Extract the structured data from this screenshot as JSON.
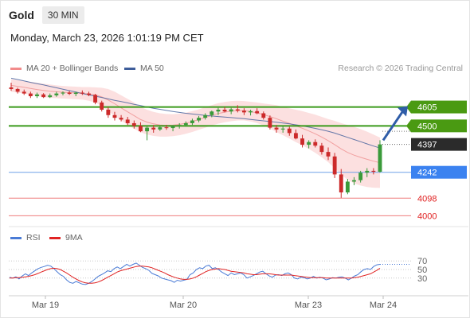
{
  "header": {
    "symbol": "Gold",
    "timeframe": "30 MIN",
    "datetime": "Monday, March 23, 2026 1:01:19 PM CET"
  },
  "legend": {
    "bollinger": "MA 20 + Bollinger Bands",
    "ma50": "MA 50",
    "rsi": "RSI",
    "rsi_ma": "9MA"
  },
  "credit": "Research © 2026 Trading Central",
  "colors": {
    "up_candle": "#3a9a3a",
    "down_candle": "#cc2a2a",
    "support": "#6fa0e8",
    "resistance": "#3a9a1a",
    "low_level": "#ef7d7d",
    "ma50": "#3e5d9a",
    "band_fill": "#fbdada",
    "rsi_line": "#4a7bd6",
    "rsi_ma_line": "#e02424",
    "arrow": "#2f5da8"
  },
  "chart_data": [
    {
      "type": "candlestick",
      "x_labels": [
        "Mar 19",
        "Mar 20",
        "Mar 23",
        "Mar 24"
      ],
      "ylim": [
        3940,
        4780
      ],
      "last_price": 4397,
      "levels": [
        {
          "value": 4605,
          "label": "4605",
          "kind": "resistance"
        },
        {
          "value": 4500,
          "label": "4500",
          "kind": "resistance"
        },
        {
          "value": 4397,
          "label": "4397",
          "kind": "last"
        },
        {
          "value": 4242,
          "label": "4242",
          "kind": "support"
        },
        {
          "value": 4098,
          "label": "4098",
          "kind": "low"
        },
        {
          "value": 4000,
          "label": "4000",
          "kind": "low"
        }
      ],
      "ohlc": [
        [
          4714,
          4740,
          4695,
          4705
        ],
        [
          4705,
          4712,
          4680,
          4690
        ],
        [
          4690,
          4702,
          4672,
          4680
        ],
        [
          4680,
          4690,
          4655,
          4665
        ],
        [
          4665,
          4685,
          4655,
          4675
        ],
        [
          4675,
          4682,
          4655,
          4660
        ],
        [
          4660,
          4680,
          4655,
          4670
        ],
        [
          4670,
          4690,
          4662,
          4680
        ],
        [
          4680,
          4692,
          4670,
          4685
        ],
        [
          4685,
          4695,
          4672,
          4678
        ],
        [
          4678,
          4690,
          4665,
          4685
        ],
        [
          4685,
          4697,
          4672,
          4680
        ],
        [
          4680,
          4690,
          4665,
          4672
        ],
        [
          4672,
          4678,
          4620,
          4630
        ],
        [
          4630,
          4640,
          4580,
          4590
        ],
        [
          4590,
          4605,
          4545,
          4560
        ],
        [
          4560,
          4578,
          4530,
          4545
        ],
        [
          4545,
          4560,
          4525,
          4535
        ],
        [
          4535,
          4550,
          4505,
          4515
        ],
        [
          4515,
          4530,
          4485,
          4500
        ],
        [
          4500,
          4520,
          4465,
          4470
        ],
        [
          4470,
          4500,
          4420,
          4490
        ],
        [
          4490,
          4505,
          4462,
          4480
        ],
        [
          4480,
          4500,
          4472,
          4492
        ],
        [
          4492,
          4506,
          4478,
          4488
        ],
        [
          4488,
          4505,
          4470,
          4500
        ],
        [
          4500,
          4515,
          4485,
          4505
        ],
        [
          4505,
          4525,
          4495,
          4515
        ],
        [
          4515,
          4540,
          4505,
          4530
        ],
        [
          4530,
          4555,
          4520,
          4545
        ],
        [
          4545,
          4570,
          4535,
          4560
        ],
        [
          4560,
          4585,
          4548,
          4580
        ],
        [
          4580,
          4600,
          4560,
          4590
        ],
        [
          4590,
          4605,
          4575,
          4580
        ],
        [
          4580,
          4600,
          4565,
          4592
        ],
        [
          4592,
          4615,
          4575,
          4585
        ],
        [
          4585,
          4598,
          4560,
          4575
        ],
        [
          4575,
          4590,
          4558,
          4582
        ],
        [
          4582,
          4598,
          4565,
          4570
        ],
        [
          4570,
          4580,
          4535,
          4545
        ],
        [
          4545,
          4558,
          4480,
          4490
        ],
        [
          4490,
          4505,
          4462,
          4480
        ],
        [
          4480,
          4498,
          4462,
          4485
        ],
        [
          4485,
          4495,
          4445,
          4460
        ],
        [
          4460,
          4480,
          4425,
          4430
        ],
        [
          4430,
          4450,
          4380,
          4395
        ],
        [
          4395,
          4420,
          4375,
          4410
        ],
        [
          4410,
          4425,
          4380,
          4390
        ],
        [
          4390,
          4405,
          4340,
          4355
        ],
        [
          4355,
          4380,
          4310,
          4330
        ],
        [
          4330,
          4350,
          4210,
          4230
        ],
        [
          4230,
          4260,
          4100,
          4130
        ],
        [
          4130,
          4205,
          4120,
          4190
        ],
        [
          4190,
          4215,
          4170,
          4198
        ],
        [
          4198,
          4250,
          4185,
          4240
        ],
        [
          4240,
          4265,
          4215,
          4250
        ],
        [
          4250,
          4265,
          4230,
          4245
        ],
        [
          4245,
          4420,
          4240,
          4397
        ]
      ],
      "ma50": [
        4765,
        4758,
        4750,
        4742,
        4735,
        4728,
        4720,
        4712,
        4704,
        4696,
        4688,
        4680,
        4672,
        4665,
        4658,
        4650,
        4642,
        4635,
        4628,
        4620,
        4613,
        4605,
        4598,
        4592,
        4586,
        4580,
        4575,
        4570,
        4566,
        4562,
        4558,
        4555,
        4552,
        4549,
        4546,
        4543,
        4540,
        4536,
        4532,
        4528,
        4524,
        4520,
        4516,
        4511,
        4506,
        4500,
        4493,
        4486,
        4478,
        4470,
        4460,
        4448,
        4436,
        4424,
        4412,
        4400,
        4388,
        4377
      ],
      "bb_upper": [
        4760,
        4755,
        4750,
        4745,
        4740,
        4735,
        4730,
        4725,
        4722,
        4720,
        4718,
        4716,
        4716,
        4714,
        4712,
        4705,
        4690,
        4670,
        4650,
        4630,
        4605,
        4590,
        4578,
        4570,
        4566,
        4565,
        4568,
        4574,
        4582,
        4592,
        4604,
        4615,
        4626,
        4633,
        4638,
        4640,
        4638,
        4634,
        4630,
        4625,
        4620,
        4615,
        4605,
        4598,
        4590,
        4582,
        4572,
        4562,
        4550,
        4538,
        4528,
        4515,
        4505,
        4495,
        4482,
        4468,
        4452,
        4435
      ],
      "bb_lower": [
        4690,
        4685,
        4680,
        4672,
        4665,
        4660,
        4656,
        4654,
        4652,
        4650,
        4648,
        4646,
        4640,
        4630,
        4610,
        4582,
        4556,
        4530,
        4506,
        4484,
        4465,
        4452,
        4444,
        4440,
        4440,
        4443,
        4448,
        4456,
        4466,
        4478,
        4490,
        4502,
        4512,
        4520,
        4526,
        4530,
        4530,
        4525,
        4515,
        4502,
        4485,
        4466,
        4448,
        4430,
        4410,
        4392,
        4372,
        4350,
        4325,
        4298,
        4265,
        4230,
        4200,
        4180,
        4168,
        4160,
        4156,
        4155
      ],
      "bb_mid": [
        4725,
        4720,
        4715,
        4708,
        4702,
        4697,
        4693,
        4690,
        4687,
        4685,
        4683,
        4681,
        4678,
        4672,
        4661,
        4644,
        4623,
        4600,
        4578,
        4557,
        4535,
        4521,
        4511,
        4505,
        4503,
        4504,
        4508,
        4515,
        4524,
        4535,
        4547,
        4558,
        4569,
        4576,
        4582,
        4585,
        4584,
        4580,
        4572,
        4563,
        4552,
        4540,
        4526,
        4514,
        4500,
        4487,
        4472,
        4456,
        4438,
        4418,
        4396,
        4372,
        4352,
        4337,
        4325,
        4314,
        4304,
        4295
      ]
    },
    {
      "type": "line",
      "name": "RSI panel",
      "ylim": [
        0,
        100
      ],
      "y_ticks": [
        70,
        50,
        30
      ],
      "rsi": [
        32,
        30,
        33,
        28,
        35,
        40,
        36,
        42,
        47,
        52,
        55,
        57,
        60,
        58,
        52,
        45,
        38,
        34,
        26,
        20,
        18,
        22,
        19,
        16,
        15,
        18,
        22,
        28,
        34,
        38,
        42,
        47,
        45,
        52,
        56,
        52,
        57,
        62,
        58,
        62,
        65,
        60,
        55,
        52,
        48,
        41,
        38,
        35,
        30,
        28,
        26,
        24,
        20,
        25,
        23,
        25,
        27,
        38,
        42,
        50,
        54,
        52,
        58,
        60,
        52,
        54,
        50,
        44,
        40,
        36,
        42,
        38,
        40,
        42,
        38,
        30,
        33,
        36,
        40,
        44,
        46,
        40,
        35,
        32,
        37,
        38,
        36,
        40,
        42,
        38,
        30,
        28,
        32,
        31,
        28,
        30,
        34,
        30,
        32,
        30,
        26,
        28,
        31,
        30,
        32,
        33,
        30,
        26,
        30,
        35,
        38,
        45,
        50,
        52,
        50,
        57,
        61,
        62
      ],
      "rsi_ma": [
        30,
        30,
        31,
        31,
        32,
        33,
        34,
        36,
        38,
        41,
        44,
        47,
        50,
        52,
        53,
        52,
        50,
        46,
        42,
        37,
        32,
        28,
        24,
        21,
        19,
        18,
        18,
        19,
        21,
        24,
        28,
        32,
        36,
        40,
        44,
        47,
        49,
        51,
        53,
        55,
        57,
        58,
        58,
        57,
        56,
        54,
        51,
        48,
        45,
        42,
        38,
        35,
        32,
        30,
        28,
        27,
        27,
        28,
        30,
        33,
        37,
        41,
        45,
        48,
        50,
        51,
        52,
        51,
        50,
        48,
        46,
        45,
        44,
        43,
        42,
        40,
        39,
        38,
        38,
        39,
        40,
        40,
        40,
        39,
        38,
        37,
        37,
        37,
        37,
        37,
        36,
        35,
        34,
        33,
        32,
        31,
        31,
        31,
        31,
        31,
        30,
        30,
        30,
        30,
        30,
        30,
        30,
        30,
        30,
        31,
        32,
        34,
        36,
        38,
        40,
        44,
        48,
        53
      ]
    }
  ]
}
